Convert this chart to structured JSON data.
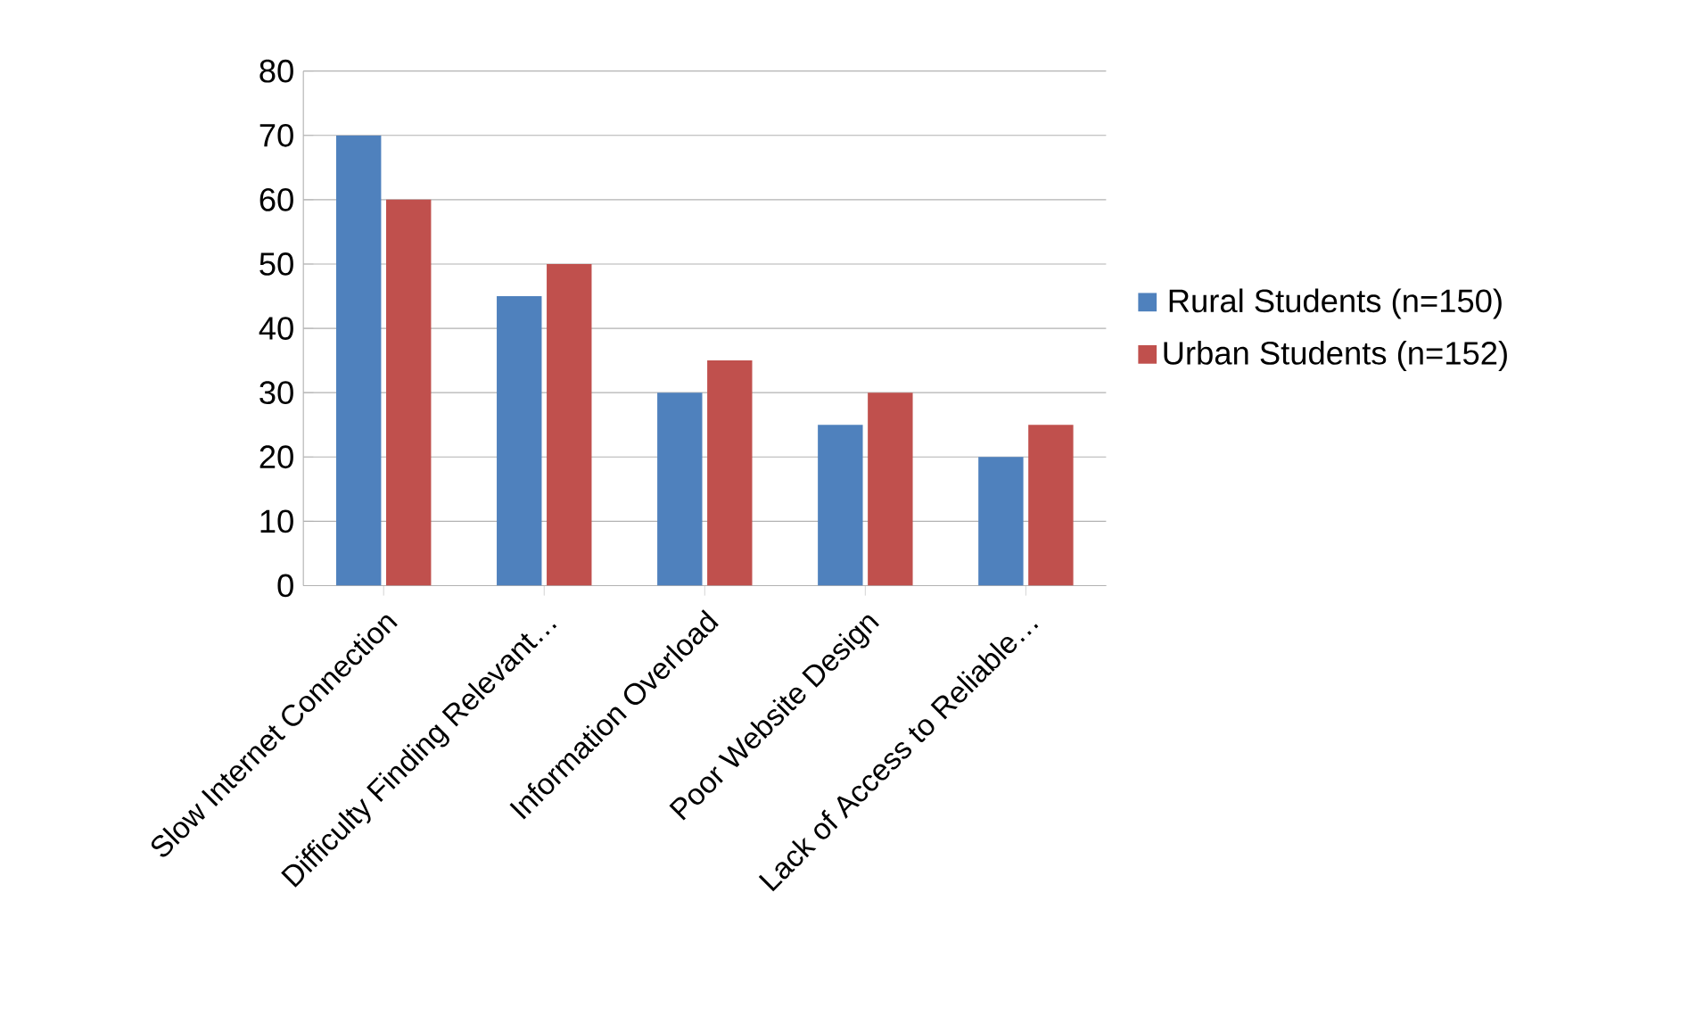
{
  "chart_data": {
    "type": "bar",
    "categories": [
      "Slow Internet Connection",
      "Difficulty Finding Relevant…",
      "Information Overload",
      "Poor Website Design",
      "Lack of Access to Reliable…"
    ],
    "series": [
      {
        "name": "Rural Students (n=150)",
        "color": "#4f81bd",
        "values": [
          70,
          45,
          30,
          25,
          20
        ]
      },
      {
        "name": "Urban Students (n=152)",
        "color": "#c0504d",
        "values": [
          60,
          50,
          35,
          30,
          25
        ]
      }
    ],
    "ylim": [
      0,
      80
    ],
    "yticks": [
      0,
      10,
      20,
      30,
      40,
      50,
      60,
      70,
      80
    ],
    "grid": "y",
    "legend": "right"
  }
}
